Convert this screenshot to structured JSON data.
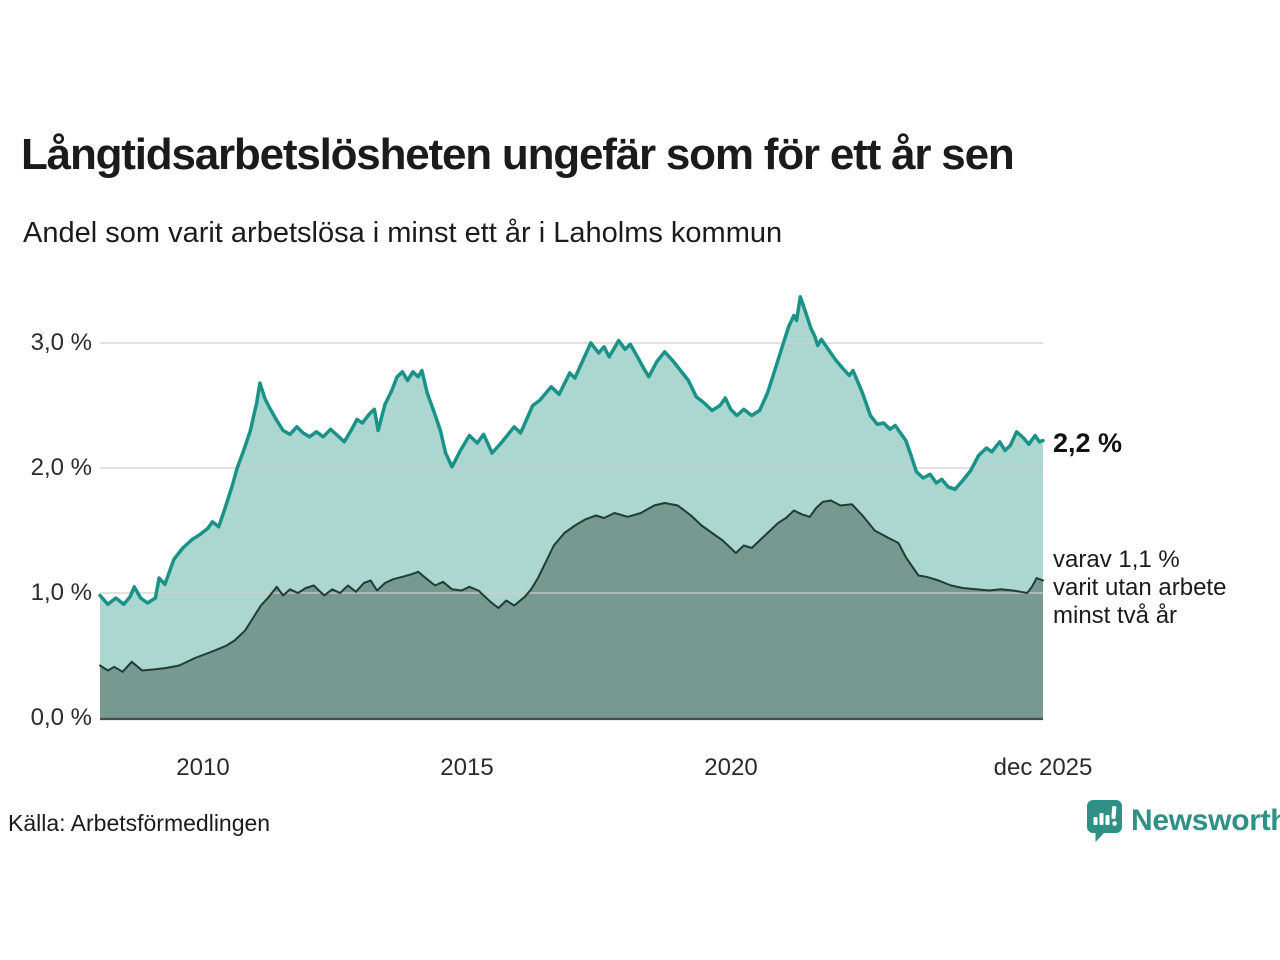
{
  "header": {
    "title": "Långtidsarbetslösheten ungefär som för ett år sen",
    "subtitle": "Andel som varit arbetslösa i minst ett år i Laholms kommun"
  },
  "chart_data": {
    "type": "area",
    "title": "Långtidsarbetslösheten ungefär som för ett år sen",
    "subtitle": "Andel som varit arbetslösa i minst ett år i Laholms kommun",
    "x_axis": {
      "range": [
        2008.05,
        2025.92
      ],
      "ticks": [
        {
          "label": "2010",
          "year": 2010
        },
        {
          "label": "2015",
          "year": 2015
        },
        {
          "label": "2020",
          "year": 2020
        },
        {
          "label": "dec 2025",
          "year": 2025.92
        }
      ]
    },
    "y_axis": {
      "unit": "%",
      "range": [
        0,
        3.5
      ],
      "ticks": [
        {
          "label": "0,0 %",
          "value": 0
        },
        {
          "label": "1,0 %",
          "value": 1
        },
        {
          "label": "2,0 %",
          "value": 2
        },
        {
          "label": "3,0 %",
          "value": 3
        }
      ],
      "gridline_values": [
        1,
        2,
        3
      ],
      "gridline_color": "#cfcfcf",
      "baseline_color": "#4d4d4d"
    },
    "series": [
      {
        "name": "Andel som varit arbetslösa i minst ett år",
        "line_color": "#1a9287",
        "fill_color": "#abd7d0",
        "line_width": 3.5,
        "last_value": 2.2,
        "points": [
          [
            2008.05,
            0.98
          ],
          [
            2008.2,
            0.91
          ],
          [
            2008.35,
            0.96
          ],
          [
            2008.5,
            0.91
          ],
          [
            2008.62,
            0.97
          ],
          [
            2008.7,
            1.05
          ],
          [
            2008.82,
            0.96
          ],
          [
            2008.95,
            0.92
          ],
          [
            2009.1,
            0.96
          ],
          [
            2009.17,
            1.12
          ],
          [
            2009.28,
            1.07
          ],
          [
            2009.45,
            1.27
          ],
          [
            2009.62,
            1.36
          ],
          [
            2009.8,
            1.43
          ],
          [
            2009.95,
            1.47
          ],
          [
            2010.1,
            1.52
          ],
          [
            2010.18,
            1.57
          ],
          [
            2010.3,
            1.53
          ],
          [
            2010.42,
            1.68
          ],
          [
            2010.55,
            1.85
          ],
          [
            2010.65,
            2.0
          ],
          [
            2010.78,
            2.15
          ],
          [
            2010.9,
            2.3
          ],
          [
            2010.98,
            2.45
          ],
          [
            2011.02,
            2.52
          ],
          [
            2011.08,
            2.68
          ],
          [
            2011.18,
            2.55
          ],
          [
            2011.28,
            2.47
          ],
          [
            2011.4,
            2.38
          ],
          [
            2011.52,
            2.3
          ],
          [
            2011.65,
            2.27
          ],
          [
            2011.78,
            2.33
          ],
          [
            2011.9,
            2.28
          ],
          [
            2012.02,
            2.25
          ],
          [
            2012.15,
            2.29
          ],
          [
            2012.28,
            2.25
          ],
          [
            2012.42,
            2.31
          ],
          [
            2012.55,
            2.26
          ],
          [
            2012.68,
            2.21
          ],
          [
            2012.82,
            2.31
          ],
          [
            2012.92,
            2.39
          ],
          [
            2013.02,
            2.36
          ],
          [
            2013.15,
            2.43
          ],
          [
            2013.25,
            2.47
          ],
          [
            2013.32,
            2.3
          ],
          [
            2013.45,
            2.51
          ],
          [
            2013.58,
            2.62
          ],
          [
            2013.68,
            2.73
          ],
          [
            2013.78,
            2.77
          ],
          [
            2013.88,
            2.7
          ],
          [
            2013.98,
            2.77
          ],
          [
            2014.08,
            2.73
          ],
          [
            2014.15,
            2.78
          ],
          [
            2014.25,
            2.6
          ],
          [
            2014.38,
            2.45
          ],
          [
            2014.5,
            2.3
          ],
          [
            2014.6,
            2.12
          ],
          [
            2014.72,
            2.01
          ],
          [
            2014.88,
            2.14
          ],
          [
            2015.05,
            2.26
          ],
          [
            2015.2,
            2.2
          ],
          [
            2015.32,
            2.27
          ],
          [
            2015.48,
            2.12
          ],
          [
            2015.65,
            2.2
          ],
          [
            2015.9,
            2.33
          ],
          [
            2016.02,
            2.28
          ],
          [
            2016.25,
            2.5
          ],
          [
            2016.38,
            2.54
          ],
          [
            2016.6,
            2.65
          ],
          [
            2016.75,
            2.59
          ],
          [
            2016.95,
            2.76
          ],
          [
            2017.05,
            2.72
          ],
          [
            2017.2,
            2.86
          ],
          [
            2017.35,
            3.0
          ],
          [
            2017.5,
            2.92
          ],
          [
            2017.6,
            2.97
          ],
          [
            2017.7,
            2.89
          ],
          [
            2017.88,
            3.02
          ],
          [
            2018.0,
            2.95
          ],
          [
            2018.1,
            2.99
          ],
          [
            2018.22,
            2.9
          ],
          [
            2018.35,
            2.8
          ],
          [
            2018.45,
            2.73
          ],
          [
            2018.6,
            2.85
          ],
          [
            2018.75,
            2.93
          ],
          [
            2018.9,
            2.86
          ],
          [
            2019.05,
            2.78
          ],
          [
            2019.2,
            2.7
          ],
          [
            2019.35,
            2.57
          ],
          [
            2019.5,
            2.52
          ],
          [
            2019.65,
            2.46
          ],
          [
            2019.8,
            2.5
          ],
          [
            2019.9,
            2.56
          ],
          [
            2020.0,
            2.47
          ],
          [
            2020.12,
            2.42
          ],
          [
            2020.25,
            2.47
          ],
          [
            2020.4,
            2.42
          ],
          [
            2020.55,
            2.46
          ],
          [
            2020.7,
            2.6
          ],
          [
            2020.85,
            2.8
          ],
          [
            2021.0,
            3.0
          ],
          [
            2021.1,
            3.13
          ],
          [
            2021.2,
            3.22
          ],
          [
            2021.25,
            3.18
          ],
          [
            2021.32,
            3.37
          ],
          [
            2021.42,
            3.25
          ],
          [
            2021.52,
            3.12
          ],
          [
            2021.6,
            3.05
          ],
          [
            2021.65,
            2.98
          ],
          [
            2021.72,
            3.03
          ],
          [
            2021.85,
            2.95
          ],
          [
            2022.0,
            2.86
          ],
          [
            2022.12,
            2.8
          ],
          [
            2022.25,
            2.74
          ],
          [
            2022.32,
            2.78
          ],
          [
            2022.5,
            2.6
          ],
          [
            2022.65,
            2.42
          ],
          [
            2022.78,
            2.35
          ],
          [
            2022.9,
            2.36
          ],
          [
            2023.02,
            2.31
          ],
          [
            2023.12,
            2.34
          ],
          [
            2023.22,
            2.28
          ],
          [
            2023.32,
            2.22
          ],
          [
            2023.42,
            2.1
          ],
          [
            2023.52,
            1.97
          ],
          [
            2023.65,
            1.92
          ],
          [
            2023.78,
            1.95
          ],
          [
            2023.9,
            1.88
          ],
          [
            2024.0,
            1.91
          ],
          [
            2024.12,
            1.85
          ],
          [
            2024.25,
            1.83
          ],
          [
            2024.4,
            1.9
          ],
          [
            2024.55,
            1.98
          ],
          [
            2024.7,
            2.1
          ],
          [
            2024.85,
            2.16
          ],
          [
            2024.95,
            2.13
          ],
          [
            2025.1,
            2.21
          ],
          [
            2025.2,
            2.14
          ],
          [
            2025.3,
            2.18
          ],
          [
            2025.42,
            2.29
          ],
          [
            2025.55,
            2.24
          ],
          [
            2025.65,
            2.19
          ],
          [
            2025.77,
            2.26
          ],
          [
            2025.85,
            2.21
          ],
          [
            2025.92,
            2.22
          ]
        ]
      },
      {
        "name": "varav utan arbete minst två år",
        "line_color": "#203c37",
        "fill_color": "#78998f",
        "line_width": 2,
        "last_value": 1.1,
        "points": [
          [
            2008.05,
            0.42
          ],
          [
            2008.2,
            0.38
          ],
          [
            2008.32,
            0.41
          ],
          [
            2008.48,
            0.37
          ],
          [
            2008.65,
            0.45
          ],
          [
            2008.85,
            0.38
          ],
          [
            2009.1,
            0.39
          ],
          [
            2009.3,
            0.4
          ],
          [
            2009.55,
            0.42
          ],
          [
            2009.85,
            0.48
          ],
          [
            2010.1,
            0.52
          ],
          [
            2010.28,
            0.55
          ],
          [
            2010.45,
            0.58
          ],
          [
            2010.6,
            0.62
          ],
          [
            2010.8,
            0.7
          ],
          [
            2010.95,
            0.8
          ],
          [
            2011.1,
            0.9
          ],
          [
            2011.25,
            0.97
          ],
          [
            2011.4,
            1.05
          ],
          [
            2011.52,
            0.98
          ],
          [
            2011.65,
            1.03
          ],
          [
            2011.8,
            1.0
          ],
          [
            2011.95,
            1.04
          ],
          [
            2012.1,
            1.06
          ],
          [
            2012.3,
            0.98
          ],
          [
            2012.45,
            1.03
          ],
          [
            2012.6,
            1.0
          ],
          [
            2012.75,
            1.06
          ],
          [
            2012.9,
            1.01
          ],
          [
            2013.05,
            1.08
          ],
          [
            2013.18,
            1.1
          ],
          [
            2013.3,
            1.02
          ],
          [
            2013.45,
            1.08
          ],
          [
            2013.6,
            1.11
          ],
          [
            2013.78,
            1.13
          ],
          [
            2013.95,
            1.15
          ],
          [
            2014.08,
            1.17
          ],
          [
            2014.25,
            1.11
          ],
          [
            2014.4,
            1.06
          ],
          [
            2014.55,
            1.09
          ],
          [
            2014.72,
            1.03
          ],
          [
            2014.9,
            1.02
          ],
          [
            2015.05,
            1.05
          ],
          [
            2015.22,
            1.02
          ],
          [
            2015.45,
            0.93
          ],
          [
            2015.6,
            0.88
          ],
          [
            2015.75,
            0.94
          ],
          [
            2015.9,
            0.9
          ],
          [
            2016.1,
            0.97
          ],
          [
            2016.22,
            1.03
          ],
          [
            2016.35,
            1.12
          ],
          [
            2016.5,
            1.25
          ],
          [
            2016.65,
            1.38
          ],
          [
            2016.85,
            1.48
          ],
          [
            2017.05,
            1.54
          ],
          [
            2017.25,
            1.59
          ],
          [
            2017.45,
            1.62
          ],
          [
            2017.6,
            1.6
          ],
          [
            2017.8,
            1.64
          ],
          [
            2018.05,
            1.61
          ],
          [
            2018.3,
            1.64
          ],
          [
            2018.55,
            1.7
          ],
          [
            2018.75,
            1.72
          ],
          [
            2019.0,
            1.7
          ],
          [
            2019.25,
            1.62
          ],
          [
            2019.45,
            1.54
          ],
          [
            2019.65,
            1.48
          ],
          [
            2019.85,
            1.42
          ],
          [
            2020.1,
            1.32
          ],
          [
            2020.25,
            1.38
          ],
          [
            2020.4,
            1.36
          ],
          [
            2020.55,
            1.42
          ],
          [
            2020.75,
            1.5
          ],
          [
            2020.9,
            1.56
          ],
          [
            2021.05,
            1.6
          ],
          [
            2021.2,
            1.66
          ],
          [
            2021.35,
            1.63
          ],
          [
            2021.5,
            1.61
          ],
          [
            2021.62,
            1.68
          ],
          [
            2021.75,
            1.73
          ],
          [
            2021.9,
            1.74
          ],
          [
            2022.08,
            1.7
          ],
          [
            2022.3,
            1.71
          ],
          [
            2022.5,
            1.62
          ],
          [
            2022.73,
            1.5
          ],
          [
            2022.95,
            1.45
          ],
          [
            2023.18,
            1.4
          ],
          [
            2023.33,
            1.28
          ],
          [
            2023.56,
            1.14
          ],
          [
            2023.71,
            1.13
          ],
          [
            2023.94,
            1.1
          ],
          [
            2024.18,
            1.06
          ],
          [
            2024.4,
            1.04
          ],
          [
            2024.65,
            1.03
          ],
          [
            2024.9,
            1.02
          ],
          [
            2025.12,
            1.03
          ],
          [
            2025.35,
            1.02
          ],
          [
            2025.5,
            1.01
          ],
          [
            2025.62,
            1.0
          ],
          [
            2025.71,
            1.05
          ],
          [
            2025.8,
            1.12
          ],
          [
            2025.92,
            1.1
          ]
        ]
      }
    ],
    "annotations": {
      "current": {
        "text": "2,2 %"
      },
      "secondary": {
        "lines": [
          "varav 1,1 %",
          "varit utan arbete",
          "minst två år"
        ]
      }
    },
    "legend": "none",
    "grid": "horizontal"
  },
  "footer": {
    "source": "Källa: Arbetsförmedlingen",
    "brand": "Newsworthy"
  },
  "colors": {
    "accent_teal": "#1a9287",
    "light_fill": "#abd7d0",
    "dark_fill": "#78998f",
    "dark_line": "#203c37",
    "brand_teal": "#2f9186",
    "gridline": "#cfcfcf",
    "text": "#1b1b1b"
  }
}
